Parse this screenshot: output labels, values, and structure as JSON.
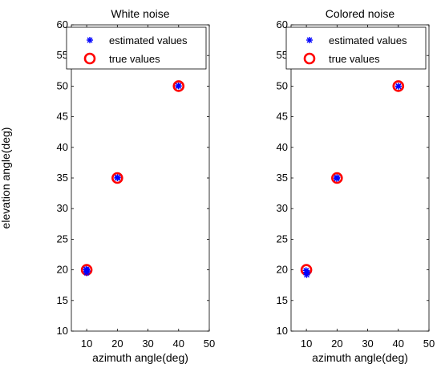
{
  "chart_data": [
    {
      "type": "scatter",
      "title": "White noise",
      "xlabel": "azimuth angle(deg)",
      "ylabel": "elevation angle(deg)",
      "xlim": [
        5,
        50
      ],
      "ylim": [
        10,
        60
      ],
      "xticks": [
        10,
        20,
        30,
        40,
        50
      ],
      "yticks": [
        10,
        15,
        20,
        25,
        30,
        35,
        40,
        45,
        50,
        55,
        60
      ],
      "legend_position": "top-right",
      "series": [
        {
          "name": "estimated values",
          "marker": "star",
          "color": "#0000ff",
          "points": [
            [
              10,
              20
            ],
            [
              10,
              19.5
            ],
            [
              10.2,
              19.8
            ],
            [
              9.8,
              20.1
            ],
            [
              20,
              35
            ],
            [
              20.1,
              35.1
            ],
            [
              40,
              50
            ],
            [
              39.9,
              50.05
            ]
          ]
        },
        {
          "name": "true values",
          "marker": "circle",
          "color": "#ff0000",
          "points": [
            [
              10,
              20
            ],
            [
              20,
              35
            ],
            [
              40,
              50
            ]
          ]
        }
      ]
    },
    {
      "type": "scatter",
      "title": "Colored noise",
      "xlabel": "azimuth angle(deg)",
      "ylabel": "",
      "xlim": [
        5,
        50
      ],
      "ylim": [
        10,
        60
      ],
      "xticks": [
        10,
        20,
        30,
        40,
        50
      ],
      "yticks": [
        10,
        15,
        20,
        25,
        30,
        35,
        40,
        45,
        50,
        55,
        60
      ],
      "legend_position": "top-right",
      "series": [
        {
          "name": "estimated values",
          "marker": "star",
          "color": "#0000ff",
          "points": [
            [
              10,
              19.6
            ],
            [
              10.1,
              19.2
            ],
            [
              9.9,
              19.9
            ],
            [
              10.3,
              19.5
            ],
            [
              20,
              35.1
            ],
            [
              19.9,
              34.9
            ],
            [
              40,
              50
            ],
            [
              40.05,
              49.95
            ]
          ]
        },
        {
          "name": "true values",
          "marker": "circle",
          "color": "#ff0000",
          "points": [
            [
              10,
              20
            ],
            [
              20,
              35
            ],
            [
              40,
              50
            ]
          ]
        }
      ]
    }
  ]
}
